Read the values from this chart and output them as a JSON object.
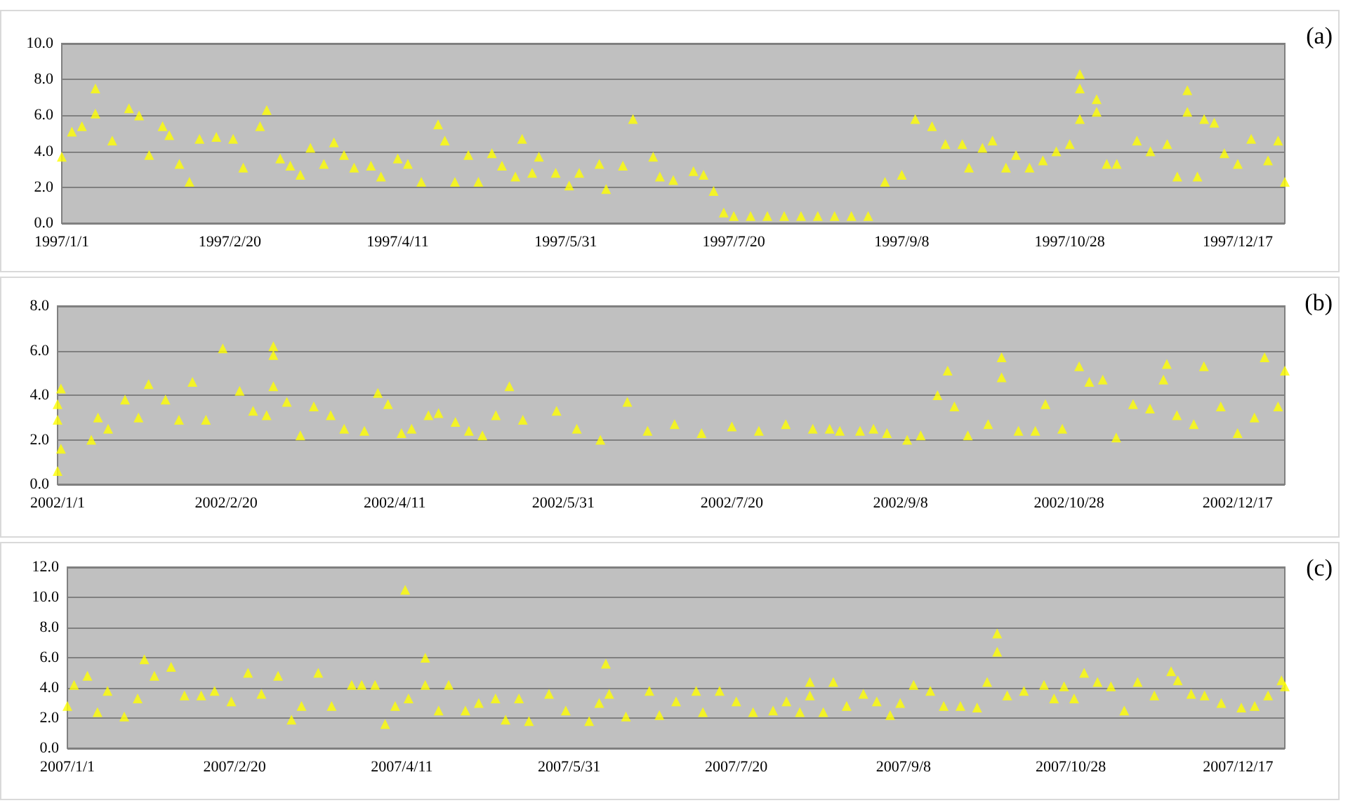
{
  "chart_data": [
    {
      "type": "scatter",
      "annotations": [
        "(a)"
      ],
      "color": "#ffff00",
      "marker": "triangle",
      "grid": "y",
      "xlim": [
        "1997-01-01",
        "1997-12-31"
      ],
      "xticks": [
        {
          "value": "1997-01-01",
          "label": "1997/1/1"
        },
        {
          "value": "1997-02-20",
          "label": "1997/2/20"
        },
        {
          "value": "1997-04-11",
          "label": "1997/4/11"
        },
        {
          "value": "1997-05-31",
          "label": "1997/5/31"
        },
        {
          "value": "1997-07-20",
          "label": "1997/7/20"
        },
        {
          "value": "1997-09-08",
          "label": "1997/9/8"
        },
        {
          "value": "1997-10-28",
          "label": "1997/10/28"
        },
        {
          "value": "1997-12-17",
          "label": "1997/12/17"
        }
      ],
      "ylim": [
        0,
        10
      ],
      "yticks": [
        {
          "value": 0,
          "label": "0.0"
        },
        {
          "value": 2,
          "label": "2.0"
        },
        {
          "value": 4,
          "label": "4.0"
        },
        {
          "value": 6,
          "label": "6.0"
        },
        {
          "value": 8,
          "label": "8.0"
        },
        {
          "value": 10,
          "label": "10.0"
        }
      ],
      "x": [
        "1997-01-01",
        "1997-01-04",
        "1997-01-07",
        "1997-01-11",
        "1997-01-11",
        "1997-01-16",
        "1997-01-21",
        "1997-01-24",
        "1997-01-27",
        "1997-01-31",
        "1997-02-02",
        "1997-02-05",
        "1997-02-08",
        "1997-02-11",
        "1997-02-16",
        "1997-02-21",
        "1997-02-24",
        "1997-03-01",
        "1997-03-03",
        "1997-03-07",
        "1997-03-10",
        "1997-03-13",
        "1997-03-16",
        "1997-03-20",
        "1997-03-23",
        "1997-03-26",
        "1997-03-29",
        "1997-04-03",
        "1997-04-06",
        "1997-04-11",
        "1997-04-14",
        "1997-04-18",
        "1997-04-23",
        "1997-04-25",
        "1997-04-28",
        "1997-05-02",
        "1997-05-05",
        "1997-05-09",
        "1997-05-12",
        "1997-05-16",
        "1997-05-18",
        "1997-05-21",
        "1997-05-23",
        "1997-05-28",
        "1997-06-01",
        "1997-06-04",
        "1997-06-10",
        "1997-06-12",
        "1997-06-17",
        "1997-06-20",
        "1997-06-26",
        "1997-06-28",
        "1997-07-02",
        "1997-07-08",
        "1997-07-11",
        "1997-07-14",
        "1997-07-17",
        "1997-07-20",
        "1997-07-25",
        "1997-07-30",
        "1997-08-04",
        "1997-08-09",
        "1997-08-14",
        "1997-08-19",
        "1997-08-24",
        "1997-08-29",
        "1997-09-03",
        "1997-09-08",
        "1997-09-12",
        "1997-09-17",
        "1997-09-21",
        "1997-09-26",
        "1997-09-28",
        "1997-10-02",
        "1997-10-05",
        "1997-10-09",
        "1997-10-12",
        "1997-10-16",
        "1997-10-20",
        "1997-10-24",
        "1997-10-28",
        "1997-10-31",
        "1997-10-31",
        "1997-10-31",
        "1997-11-05",
        "1997-11-05",
        "1997-11-08",
        "1997-11-11",
        "1997-11-17",
        "1997-11-21",
        "1997-11-26",
        "1997-11-29",
        "1997-12-02",
        "1997-12-02",
        "1997-12-05",
        "1997-12-07",
        "1997-12-10",
        "1997-12-13",
        "1997-12-17",
        "1997-12-21",
        "1997-12-26",
        "1997-12-29",
        "1997-12-31"
      ],
      "values": [
        3.7,
        5.1,
        5.4,
        7.5,
        6.1,
        4.6,
        6.4,
        6.0,
        3.8,
        5.4,
        4.9,
        3.3,
        2.3,
        4.7,
        4.8,
        4.7,
        3.1,
        5.4,
        6.3,
        3.6,
        3.2,
        2.7,
        4.2,
        3.3,
        4.5,
        3.8,
        3.1,
        3.2,
        2.6,
        3.6,
        3.3,
        2.3,
        5.5,
        4.6,
        2.3,
        3.8,
        2.3,
        3.9,
        3.2,
        2.6,
        4.7,
        2.8,
        3.7,
        2.8,
        2.1,
        2.8,
        3.3,
        1.9,
        3.2,
        5.8,
        3.7,
        2.6,
        2.4,
        2.9,
        2.7,
        1.8,
        0.6,
        0.4,
        0.4,
        0.4,
        0.4,
        0.4,
        0.4,
        0.4,
        0.4,
        0.4,
        2.3,
        2.7,
        5.8,
        5.4,
        4.4,
        4.4,
        3.1,
        4.2,
        4.6,
        3.1,
        3.8,
        3.1,
        3.5,
        4.0,
        4.4,
        8.3,
        7.5,
        5.8,
        6.9,
        6.2,
        3.3,
        3.3,
        4.6,
        4.0,
        4.4,
        2.6,
        7.4,
        6.2,
        2.6,
        5.8,
        5.6,
        3.9,
        3.3,
        4.7,
        3.5,
        4.6,
        2.3
      ]
    },
    {
      "type": "scatter",
      "annotations": [
        "(b)"
      ],
      "color": "#ffff00",
      "marker": "triangle",
      "grid": "y",
      "xlim": [
        "2002-01-01",
        "2002-12-31"
      ],
      "xticks": [
        {
          "value": "2002-01-01",
          "label": "2002/1/1"
        },
        {
          "value": "2002-02-20",
          "label": "2002/2/20"
        },
        {
          "value": "2002-04-11",
          "label": "2002/4/11"
        },
        {
          "value": "2002-05-31",
          "label": "2002/5/31"
        },
        {
          "value": "2002-07-20",
          "label": "2002/7/20"
        },
        {
          "value": "2002-09-08",
          "label": "2002/9/8"
        },
        {
          "value": "2002-10-28",
          "label": "2002/10/28"
        },
        {
          "value": "2002-12-17",
          "label": "2002/12/17"
        }
      ],
      "ylim": [
        0,
        8
      ],
      "yticks": [
        {
          "value": 0,
          "label": "0.0"
        },
        {
          "value": 2,
          "label": "2.0"
        },
        {
          "value": 4,
          "label": "4.0"
        },
        {
          "value": 6,
          "label": "6.0"
        },
        {
          "value": 8,
          "label": "8.0"
        }
      ],
      "x": [
        "2002-01-01",
        "2002-01-02",
        "2002-01-01",
        "2002-01-02",
        "2002-01-01",
        "2002-01-11",
        "2002-01-13",
        "2002-01-16",
        "2002-01-21",
        "2002-01-25",
        "2002-01-28",
        "2002-02-02",
        "2002-02-06",
        "2002-02-10",
        "2002-02-14",
        "2002-02-19",
        "2002-02-24",
        "2002-02-28",
        "2002-03-04",
        "2002-03-06",
        "2002-03-06",
        "2002-03-06",
        "2002-03-10",
        "2002-03-14",
        "2002-03-18",
        "2002-03-23",
        "2002-03-27",
        "2002-04-02",
        "2002-04-06",
        "2002-04-09",
        "2002-04-13",
        "2002-04-16",
        "2002-04-21",
        "2002-04-24",
        "2002-04-29",
        "2002-05-03",
        "2002-05-07",
        "2002-05-11",
        "2002-05-15",
        "2002-05-19",
        "2002-05-29",
        "2002-06-04",
        "2002-06-11",
        "2002-06-19",
        "2002-06-25",
        "2002-07-03",
        "2002-07-11",
        "2002-07-20",
        "2002-07-28",
        "2002-08-05",
        "2002-08-13",
        "2002-08-18",
        "2002-08-21",
        "2002-08-27",
        "2002-08-31",
        "2002-09-04",
        "2002-09-10",
        "2002-09-14",
        "2002-09-19",
        "2002-09-22",
        "2002-09-24",
        "2002-09-28",
        "2002-10-04",
        "2002-10-08",
        "2002-10-08",
        "2002-10-13",
        "2002-10-18",
        "2002-10-21",
        "2002-10-26",
        "2002-10-31",
        "2002-11-03",
        "2002-11-07",
        "2002-11-11",
        "2002-11-16",
        "2002-11-21",
        "2002-11-25",
        "2002-11-26",
        "2002-11-29",
        "2002-12-04",
        "2002-12-07",
        "2002-12-12",
        "2002-12-17",
        "2002-12-22",
        "2002-12-25",
        "2002-12-29",
        "2002-12-31"
      ],
      "values": [
        3.6,
        4.3,
        2.9,
        1.6,
        0.6,
        2.0,
        3.0,
        2.5,
        3.8,
        3.0,
        4.5,
        3.8,
        2.9,
        4.6,
        2.9,
        6.1,
        4.2,
        3.3,
        3.1,
        6.2,
        5.8,
        4.4,
        3.7,
        2.2,
        3.5,
        3.1,
        2.5,
        2.4,
        4.1,
        3.6,
        2.3,
        2.5,
        3.1,
        3.2,
        2.8,
        2.4,
        2.2,
        3.1,
        4.4,
        2.9,
        3.3,
        2.5,
        2.0,
        3.7,
        2.4,
        2.7,
        2.3,
        2.6,
        2.4,
        2.7,
        2.5,
        2.5,
        2.4,
        2.4,
        2.5,
        2.3,
        2.0,
        2.2,
        4.0,
        5.1,
        3.5,
        2.2,
        2.7,
        5.7,
        4.8,
        2.4,
        2.4,
        3.6,
        2.5,
        5.3,
        4.6,
        4.7,
        2.1,
        3.6,
        3.4,
        4.7,
        5.4,
        3.1,
        2.7,
        5.3,
        3.5,
        2.3,
        3.0,
        5.7,
        3.5,
        5.1
      ]
    },
    {
      "type": "scatter",
      "annotations": [
        "(c)"
      ],
      "color": "#ffff00",
      "marker": "triangle",
      "grid": "y",
      "xlim": [
        "2007-01-01",
        "2007-12-31"
      ],
      "xticks": [
        {
          "value": "2007-01-01",
          "label": "2007/1/1"
        },
        {
          "value": "2007-02-20",
          "label": "2007/2/20"
        },
        {
          "value": "2007-04-11",
          "label": "2007/4/11"
        },
        {
          "value": "2007-05-31",
          "label": "2007/5/31"
        },
        {
          "value": "2007-07-20",
          "label": "2007/7/20"
        },
        {
          "value": "2007-09-08",
          "label": "2007/9/8"
        },
        {
          "value": "2007-10-28",
          "label": "2007/10/28"
        },
        {
          "value": "2007-12-17",
          "label": "2007/12/17"
        }
      ],
      "ylim": [
        0,
        12
      ],
      "yticks": [
        {
          "value": 0,
          "label": "0.0"
        },
        {
          "value": 2,
          "label": "2.0"
        },
        {
          "value": 4,
          "label": "4.0"
        },
        {
          "value": 6,
          "label": "6.0"
        },
        {
          "value": 8,
          "label": "8.0"
        },
        {
          "value": 10,
          "label": "10.0"
        },
        {
          "value": 12,
          "label": "12.0"
        }
      ],
      "x": [
        "2007-01-01",
        "2007-01-03",
        "2007-01-07",
        "2007-01-10",
        "2007-01-13",
        "2007-01-18",
        "2007-01-22",
        "2007-01-24",
        "2007-01-27",
        "2007-02-01",
        "2007-02-05",
        "2007-02-10",
        "2007-02-14",
        "2007-02-19",
        "2007-02-24",
        "2007-02-28",
        "2007-03-05",
        "2007-03-09",
        "2007-03-12",
        "2007-03-17",
        "2007-03-21",
        "2007-03-27",
        "2007-03-30",
        "2007-04-03",
        "2007-04-06",
        "2007-04-09",
        "2007-04-12",
        "2007-04-13",
        "2007-04-18",
        "2007-04-18",
        "2007-04-22",
        "2007-04-25",
        "2007-04-30",
        "2007-05-04",
        "2007-05-09",
        "2007-05-12",
        "2007-05-16",
        "2007-05-19",
        "2007-05-25",
        "2007-05-30",
        "2007-06-06",
        "2007-06-09",
        "2007-06-11",
        "2007-06-12",
        "2007-06-17",
        "2007-06-24",
        "2007-06-27",
        "2007-07-02",
        "2007-07-08",
        "2007-07-10",
        "2007-07-15",
        "2007-07-20",
        "2007-07-25",
        "2007-07-31",
        "2007-08-04",
        "2007-08-08",
        "2007-08-11",
        "2007-08-11",
        "2007-08-15",
        "2007-08-18",
        "2007-08-22",
        "2007-08-27",
        "2007-08-31",
        "2007-09-04",
        "2007-09-07",
        "2007-09-11",
        "2007-09-16",
        "2007-09-20",
        "2007-09-25",
        "2007-09-30",
        "2007-10-03",
        "2007-10-06",
        "2007-10-06",
        "2007-10-09",
        "2007-10-14",
        "2007-10-20",
        "2007-10-23",
        "2007-10-26",
        "2007-10-29",
        "2007-11-01",
        "2007-11-05",
        "2007-11-09",
        "2007-11-13",
        "2007-11-17",
        "2007-11-22",
        "2007-11-27",
        "2007-11-29",
        "2007-12-03",
        "2007-12-07",
        "2007-12-12",
        "2007-12-18",
        "2007-12-22",
        "2007-12-26",
        "2007-12-30",
        "2007-12-31"
      ],
      "values": [
        2.8,
        4.2,
        4.8,
        2.4,
        3.8,
        2.1,
        3.3,
        5.9,
        4.8,
        5.4,
        3.5,
        3.5,
        3.8,
        3.1,
        5.0,
        3.6,
        4.8,
        1.9,
        2.8,
        5.0,
        2.8,
        4.2,
        4.2,
        4.2,
        1.6,
        2.8,
        10.5,
        3.3,
        6.0,
        4.2,
        2.5,
        4.2,
        2.5,
        3.0,
        3.3,
        1.9,
        3.3,
        1.8,
        3.6,
        2.5,
        1.8,
        3.0,
        5.6,
        3.6,
        2.1,
        3.8,
        2.2,
        3.1,
        3.8,
        2.4,
        3.8,
        3.1,
        2.4,
        2.5,
        3.1,
        2.4,
        4.4,
        3.5,
        2.4,
        4.4,
        2.8,
        3.6,
        3.1,
        2.2,
        3.0,
        4.2,
        3.8,
        2.8,
        2.8,
        2.7,
        4.4,
        7.6,
        6.4,
        3.5,
        3.8,
        4.2,
        3.3,
        4.1,
        3.3,
        5.0,
        4.4,
        4.1,
        2.5,
        4.4,
        3.5,
        5.1,
        4.5,
        3.6,
        3.5,
        3.0,
        2.7,
        2.8,
        3.5,
        4.5,
        4.1
      ]
    }
  ]
}
